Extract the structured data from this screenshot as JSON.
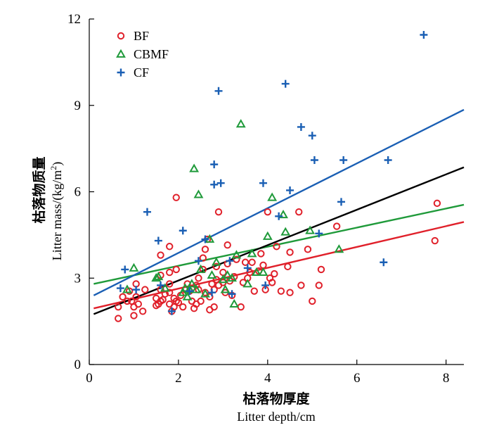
{
  "chart_data": {
    "type": "scatter",
    "title": "",
    "xlabel_cn": "枯落物厚度",
    "xlabel": "Litter depth/cm",
    "ylabel_cn": "枯落物质量",
    "ylabel_en_prefix": "Litter mass/(kg/m",
    "ylabel_en_sup": "2",
    "ylabel_en_suffix": ")",
    "xlim": [
      0,
      8.4
    ],
    "ylim": [
      0,
      12
    ],
    "xticks": [
      0,
      2,
      4,
      6,
      8
    ],
    "yticks": [
      0,
      3,
      6,
      9,
      12
    ],
    "tick_labels_x": [
      "0",
      "2",
      "4",
      "6",
      "8"
    ],
    "tick_labels_y": [
      "0",
      "3",
      "6",
      "9",
      "12"
    ],
    "grid": false,
    "legend_position": "top-left",
    "series": [
      {
        "name": "BF",
        "marker": "circle",
        "color": "#e0202a",
        "points": [
          [
            0.65,
            1.6
          ],
          [
            0.65,
            2.0
          ],
          [
            0.75,
            2.35
          ],
          [
            0.85,
            2.2
          ],
          [
            0.9,
            2.55
          ],
          [
            0.95,
            2.2
          ],
          [
            1.0,
            1.7
          ],
          [
            1.0,
            2.0
          ],
          [
            1.05,
            2.35
          ],
          [
            1.05,
            2.8
          ],
          [
            1.1,
            2.1
          ],
          [
            1.2,
            1.85
          ],
          [
            1.25,
            2.6
          ],
          [
            1.5,
            2.05
          ],
          [
            1.5,
            2.3
          ],
          [
            1.55,
            2.1
          ],
          [
            1.6,
            2.2
          ],
          [
            1.6,
            2.6
          ],
          [
            1.6,
            3.1
          ],
          [
            1.6,
            3.8
          ],
          [
            1.65,
            2.25
          ],
          [
            1.7,
            2.45
          ],
          [
            1.8,
            2.1
          ],
          [
            1.8,
            2.5
          ],
          [
            1.8,
            2.8
          ],
          [
            1.8,
            3.2
          ],
          [
            1.8,
            4.1
          ],
          [
            1.85,
            1.85
          ],
          [
            1.9,
            2.3
          ],
          [
            1.9,
            2.0
          ],
          [
            1.95,
            2.2
          ],
          [
            1.95,
            3.3
          ],
          [
            1.95,
            5.8
          ],
          [
            2.0,
            2.15
          ],
          [
            2.05,
            2.4
          ],
          [
            2.1,
            2.0
          ],
          [
            2.15,
            2.6
          ],
          [
            2.2,
            2.8
          ],
          [
            2.25,
            2.55
          ],
          [
            2.3,
            2.2
          ],
          [
            2.35,
            1.95
          ],
          [
            2.4,
            2.1
          ],
          [
            2.4,
            2.75
          ],
          [
            2.45,
            2.6
          ],
          [
            2.45,
            3.0
          ],
          [
            2.5,
            2.2
          ],
          [
            2.55,
            3.3
          ],
          [
            2.55,
            3.7
          ],
          [
            2.6,
            2.5
          ],
          [
            2.6,
            4.0
          ],
          [
            2.65,
            4.35
          ],
          [
            2.7,
            1.9
          ],
          [
            2.7,
            2.35
          ],
          [
            2.75,
            2.8
          ],
          [
            2.8,
            2.0
          ],
          [
            2.8,
            2.6
          ],
          [
            2.85,
            2.95
          ],
          [
            2.85,
            3.4
          ],
          [
            2.9,
            2.75
          ],
          [
            2.9,
            5.3
          ],
          [
            3.0,
            2.85
          ],
          [
            3.0,
            3.2
          ],
          [
            3.05,
            2.5
          ],
          [
            3.1,
            3.5
          ],
          [
            3.1,
            4.15
          ],
          [
            3.15,
            2.9
          ],
          [
            3.2,
            2.4
          ],
          [
            3.25,
            3.05
          ],
          [
            3.3,
            3.65
          ],
          [
            3.4,
            2.0
          ],
          [
            3.45,
            2.85
          ],
          [
            3.5,
            3.55
          ],
          [
            3.55,
            3.0
          ],
          [
            3.6,
            3.2
          ],
          [
            3.65,
            3.55
          ],
          [
            3.7,
            2.55
          ],
          [
            3.8,
            3.25
          ],
          [
            3.85,
            3.85
          ],
          [
            3.9,
            3.45
          ],
          [
            3.95,
            2.6
          ],
          [
            4.0,
            5.3
          ],
          [
            4.05,
            3.0
          ],
          [
            4.1,
            2.85
          ],
          [
            4.15,
            3.15
          ],
          [
            4.2,
            4.1
          ],
          [
            4.3,
            2.55
          ],
          [
            4.45,
            3.4
          ],
          [
            4.5,
            2.5
          ],
          [
            4.5,
            3.9
          ],
          [
            4.7,
            5.3
          ],
          [
            4.75,
            2.75
          ],
          [
            4.9,
            4.0
          ],
          [
            5.0,
            2.2
          ],
          [
            5.15,
            2.75
          ],
          [
            5.2,
            3.3
          ],
          [
            5.55,
            4.8
          ],
          [
            7.75,
            4.3
          ],
          [
            7.8,
            5.6
          ]
        ],
        "fit": {
          "x": [
            0.1,
            8.4
          ],
          "y": [
            1.95,
            4.95
          ]
        }
      },
      {
        "name": "CBMF",
        "marker": "triangle",
        "color": "#1f9a3a",
        "points": [
          [
            0.85,
            2.6
          ],
          [
            1.0,
            3.35
          ],
          [
            1.5,
            3.0
          ],
          [
            1.55,
            3.05
          ],
          [
            1.7,
            2.65
          ],
          [
            2.1,
            2.5
          ],
          [
            2.15,
            2.65
          ],
          [
            2.2,
            2.35
          ],
          [
            2.25,
            2.6
          ],
          [
            2.3,
            2.8
          ],
          [
            2.35,
            6.8
          ],
          [
            2.4,
            2.6
          ],
          [
            2.45,
            5.9
          ],
          [
            2.5,
            3.3
          ],
          [
            2.6,
            2.45
          ],
          [
            2.7,
            4.35
          ],
          [
            2.75,
            3.1
          ],
          [
            2.85,
            3.55
          ],
          [
            3.0,
            2.95
          ],
          [
            3.05,
            2.6
          ],
          [
            3.1,
            3.1
          ],
          [
            3.2,
            3.0
          ],
          [
            3.25,
            2.1
          ],
          [
            3.3,
            3.8
          ],
          [
            3.4,
            8.35
          ],
          [
            3.55,
            2.8
          ],
          [
            3.65,
            3.85
          ],
          [
            3.75,
            3.2
          ],
          [
            3.9,
            3.2
          ],
          [
            4.0,
            4.45
          ],
          [
            4.1,
            5.8
          ],
          [
            4.35,
            5.2
          ],
          [
            4.4,
            4.6
          ],
          [
            4.95,
            4.65
          ],
          [
            5.6,
            4.0
          ]
        ],
        "fit": {
          "x": [
            0.1,
            8.4
          ],
          "y": [
            2.8,
            5.55
          ]
        }
      },
      {
        "name": "CF",
        "marker": "plus",
        "color": "#1a5fb4",
        "points": [
          [
            0.7,
            2.65
          ],
          [
            0.8,
            3.3
          ],
          [
            1.05,
            2.6
          ],
          [
            1.3,
            5.3
          ],
          [
            1.55,
            4.3
          ],
          [
            1.6,
            2.75
          ],
          [
            1.85,
            1.85
          ],
          [
            2.1,
            4.65
          ],
          [
            2.25,
            2.55
          ],
          [
            2.45,
            3.6
          ],
          [
            2.6,
            4.35
          ],
          [
            2.75,
            2.5
          ],
          [
            2.8,
            6.95
          ],
          [
            2.8,
            6.25
          ],
          [
            2.9,
            9.5
          ],
          [
            2.95,
            6.3
          ],
          [
            3.15,
            3.6
          ],
          [
            3.2,
            2.45
          ],
          [
            3.55,
            3.35
          ],
          [
            3.9,
            6.3
          ],
          [
            3.95,
            2.75
          ],
          [
            4.25,
            5.15
          ],
          [
            4.4,
            9.75
          ],
          [
            4.5,
            6.05
          ],
          [
            4.75,
            8.25
          ],
          [
            5.0,
            7.95
          ],
          [
            5.05,
            7.1
          ],
          [
            5.15,
            4.55
          ],
          [
            5.65,
            5.65
          ],
          [
            5.7,
            7.1
          ],
          [
            6.6,
            3.55
          ],
          [
            6.7,
            7.1
          ],
          [
            7.5,
            11.45
          ]
        ],
        "fit": {
          "x": [
            0.1,
            8.4
          ],
          "y": [
            2.4,
            8.85
          ]
        }
      },
      {
        "name": "",
        "marker": "none",
        "color": "#000000",
        "points": [],
        "fit": {
          "x": [
            0.1,
            8.4
          ],
          "y": [
            1.75,
            6.85
          ]
        }
      }
    ]
  }
}
